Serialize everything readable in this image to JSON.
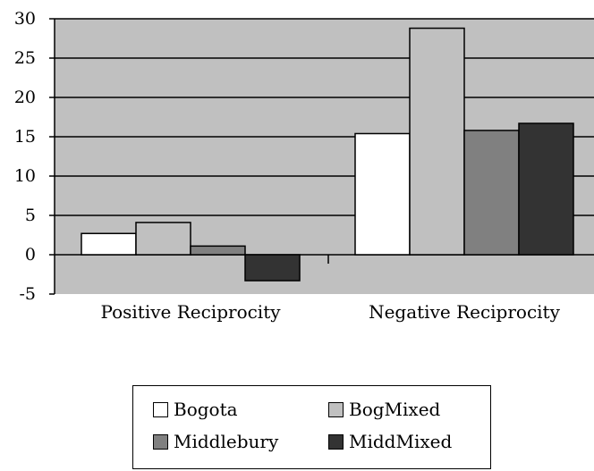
{
  "chart_data": {
    "type": "bar",
    "categories": [
      "Positive Reciprocity",
      "Negative Reciprocity"
    ],
    "series": [
      {
        "name": "Bogota",
        "values": [
          2.7,
          15.4
        ],
        "color": "#ffffff"
      },
      {
        "name": "BogMixed",
        "values": [
          4.1,
          28.8
        ],
        "color": "#c0c0c0"
      },
      {
        "name": "Middlebury",
        "values": [
          1.1,
          15.8
        ],
        "color": "#808080"
      },
      {
        "name": "MiddMixed",
        "values": [
          -3.3,
          16.7
        ],
        "color": "#333333"
      }
    ],
    "yticks": [
      -5,
      0,
      5,
      10,
      15,
      20,
      25,
      30
    ],
    "ylim": [
      -5,
      30
    ],
    "grid": true,
    "plot_background": "#c0c0c0",
    "legend_position": "bottom"
  }
}
